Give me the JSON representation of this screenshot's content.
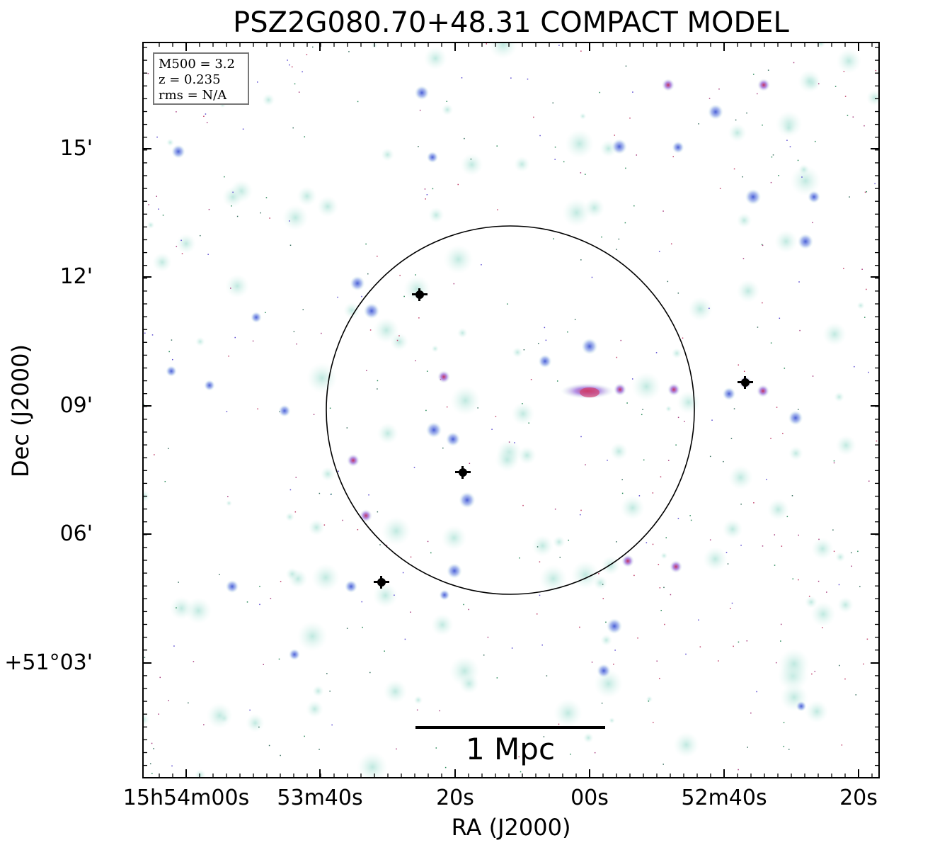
{
  "title": "PSZ2G080.70+48.31 COMPACT MODEL",
  "xlabel": "RA (J2000)",
  "ylabel": "Dec (J2000)",
  "x_ticks": [
    "15h54m00s",
    "53m40s",
    "20s",
    "00s",
    "52m40s",
    "20s"
  ],
  "y_ticks": [
    "15'",
    "12'",
    "09'",
    "06'",
    "+51°03'"
  ],
  "info": {
    "mass": "M500 = 3.2",
    "redshift": "z = 0.235",
    "rms": "rms = N/A"
  },
  "scalebar": {
    "label": "1 Mpc"
  },
  "colors": {
    "background": "#ffffff",
    "faint_source": "#cfeee6",
    "medium_source": "#7f8ee0",
    "bright_source": "#d2406e",
    "saturated_source": "#000000",
    "frame": "#000000",
    "circle": "#000000"
  }
}
